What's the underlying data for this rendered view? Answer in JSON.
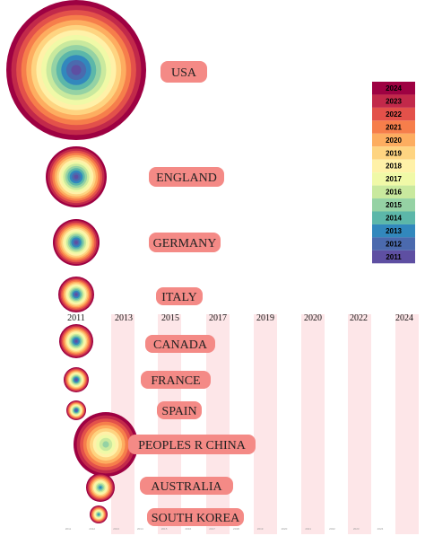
{
  "chart_data": {
    "type": "bubble",
    "countries": [
      {
        "name": "USA",
        "rings": 14
      },
      {
        "name": "ENGLAND",
        "rings": 14
      },
      {
        "name": "GERMANY",
        "rings": 14
      },
      {
        "name": "ITALY",
        "rings": 14
      },
      {
        "name": "CANADA",
        "rings": 14
      },
      {
        "name": "FRANCE",
        "rings": 14
      },
      {
        "name": "SPAIN",
        "rings": 14
      },
      {
        "name": "PEOPLES R CHINA",
        "rings": 10
      },
      {
        "name": "AUSTRALIA",
        "rings": 12
      },
      {
        "name": "SOUTH KOREA",
        "rings": 12
      }
    ],
    "top_axis_years": [
      "2011",
      "2013",
      "2015",
      "2017",
      "2019",
      "2020",
      "2022",
      "2024"
    ],
    "bottom_axis_years": [
      "2011",
      "2012",
      "2013",
      "2014",
      "2015",
      "2016",
      "2017",
      "2018",
      "2019",
      "2020",
      "2021",
      "2022",
      "2023",
      "2024"
    ],
    "legend": {
      "years": [
        "2024",
        "2023",
        "2022",
        "2021",
        "2020",
        "2019",
        "2018",
        "2017",
        "2016",
        "2015",
        "2014",
        "2013",
        "2012",
        "2011"
      ],
      "colors": [
        "#9e0142",
        "#c2294a",
        "#e3514a",
        "#f67e4b",
        "#fdad60",
        "#fed481",
        "#fff1a8",
        "#f0f9a7",
        "#c9e99e",
        "#95d2a4",
        "#5cb7a9",
        "#3288bd",
        "#4b6aae",
        "#5e4fa2"
      ]
    },
    "label_bg_color": "#f48a86",
    "stripe_color": "#fde6e8"
  }
}
